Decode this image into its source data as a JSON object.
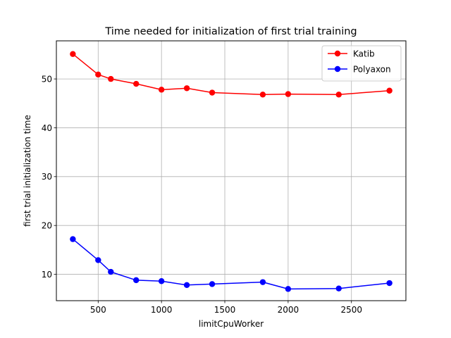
{
  "chart_data": {
    "type": "line",
    "title": "Time needed for initialization of first trial training",
    "xlabel": "limitCpuWorker",
    "ylabel": "first trial initialization time",
    "xlim": [
      170,
      2930
    ],
    "ylim": [
      4.6,
      57.8
    ],
    "xticks": [
      500,
      1000,
      1500,
      2000,
      2500
    ],
    "yticks": [
      10,
      20,
      30,
      40,
      50
    ],
    "grid": true,
    "legend_position": "top-right",
    "x": [
      300,
      500,
      600,
      800,
      1000,
      1200,
      1400,
      1800,
      2000,
      2400,
      2800
    ],
    "series": [
      {
        "name": "Katib",
        "color": "#ff0000",
        "values": [
          55.1,
          50.9,
          50.0,
          49.0,
          47.8,
          48.1,
          47.2,
          46.8,
          46.9,
          46.8,
          47.6
        ]
      },
      {
        "name": "Polyaxon",
        "color": "#0000ff",
        "values": [
          17.2,
          12.9,
          10.5,
          8.8,
          8.6,
          7.8,
          8.0,
          8.4,
          7.0,
          7.1,
          8.2
        ]
      }
    ]
  }
}
